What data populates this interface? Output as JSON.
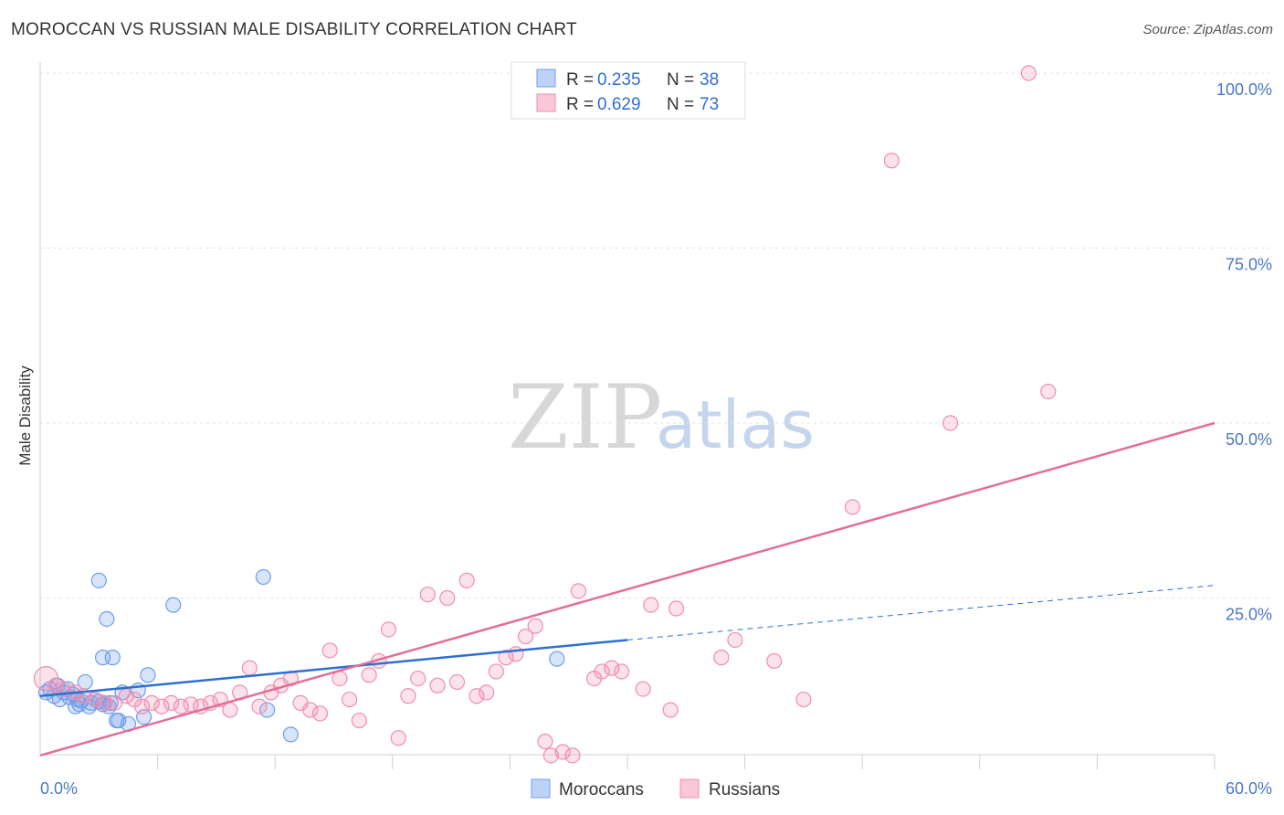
{
  "title": "MOROCCAN VS RUSSIAN MALE DISABILITY CORRELATION CHART",
  "source": "Source: ZipAtlas.com",
  "watermark": {
    "zip": "ZIP",
    "atlas": "atlas"
  },
  "colors": {
    "moroccans": "#6f9fe8",
    "russians": "#f08db0",
    "moroccans_line": "#2e6fd1",
    "russians_line": "#e46d9a",
    "axis_text": "#4a78c6"
  },
  "legend": {
    "rows": [
      {
        "r_label": "R = ",
        "r_value": "0.235",
        "n_label": "N = ",
        "n_value": "38"
      },
      {
        "r_label": "R = ",
        "r_value": "0.629",
        "n_label": "N = ",
        "n_value": "73"
      }
    ]
  },
  "chart_data": {
    "type": "scatter",
    "xlabel": "",
    "ylabel": "Male Disability",
    "xlim": [
      0,
      60
    ],
    "ylim": [
      0,
      100
    ],
    "x_tick_labels": [
      "0.0%",
      "60.0%"
    ],
    "y_tick_labels": [
      "100.0%",
      "75.0%",
      "50.0%",
      "25.0%"
    ],
    "y_ticks": [
      100,
      75,
      50,
      25
    ],
    "grid": true,
    "legend_position": "top-center",
    "series": [
      {
        "name": "Moroccans",
        "r": 0.235,
        "n": 38,
        "trend": {
          "x0": 0,
          "y0": 11.0,
          "x1": 30,
          "y1": 19.0,
          "dashed_to_x": 60,
          "dashed_to_y": 26.8
        },
        "points": [
          [
            0.3,
            11.5
          ],
          [
            0.5,
            12.0
          ],
          [
            0.7,
            11.0
          ],
          [
            0.9,
            12.5
          ],
          [
            1.0,
            10.5
          ],
          [
            1.2,
            11.5
          ],
          [
            1.4,
            12.0
          ],
          [
            1.5,
            10.8
          ],
          [
            1.7,
            11.2
          ],
          [
            1.8,
            9.5
          ],
          [
            2.0,
            9.8
          ],
          [
            2.1,
            10.3
          ],
          [
            2.3,
            13.0
          ],
          [
            2.5,
            9.5
          ],
          [
            2.6,
            10.0
          ],
          [
            2.8,
            10.5
          ],
          [
            3.0,
            10.2
          ],
          [
            3.2,
            9.8
          ],
          [
            3.3,
            10.0
          ],
          [
            3.5,
            9.5
          ],
          [
            3.6,
            10.0
          ],
          [
            3.0,
            27.5
          ],
          [
            3.2,
            16.5
          ],
          [
            3.4,
            22.0
          ],
          [
            3.7,
            16.5
          ],
          [
            4.0,
            7.5
          ],
          [
            4.2,
            11.5
          ],
          [
            4.5,
            7.0
          ],
          [
            5.0,
            11.8
          ],
          [
            5.5,
            14.0
          ],
          [
            5.3,
            8.0
          ],
          [
            6.8,
            24.0
          ],
          [
            11.4,
            28.0
          ],
          [
            11.6,
            9.0
          ],
          [
            12.8,
            5.5
          ],
          [
            26.4,
            16.3
          ],
          [
            3.9,
            7.5
          ],
          [
            1.9,
            10.5
          ]
        ]
      },
      {
        "name": "Russians",
        "r": 0.629,
        "n": 73,
        "trend": {
          "x0": 0,
          "y0": 2.5,
          "x1": 60,
          "y1": 50.0
        },
        "points": [
          [
            0.3,
            13.5
          ],
          [
            0.8,
            12.5
          ],
          [
            1.2,
            12.0
          ],
          [
            1.8,
            11.5
          ],
          [
            2.2,
            11.0
          ],
          [
            2.8,
            10.5
          ],
          [
            3.3,
            10.0
          ],
          [
            3.8,
            10.0
          ],
          [
            4.4,
            11.0
          ],
          [
            4.8,
            10.5
          ],
          [
            5.2,
            9.5
          ],
          [
            5.7,
            10.0
          ],
          [
            6.2,
            9.5
          ],
          [
            6.7,
            10.0
          ],
          [
            7.2,
            9.5
          ],
          [
            7.7,
            9.8
          ],
          [
            8.2,
            9.5
          ],
          [
            8.7,
            10.0
          ],
          [
            9.2,
            10.5
          ],
          [
            9.7,
            9.0
          ],
          [
            10.2,
            11.5
          ],
          [
            10.7,
            15.0
          ],
          [
            11.2,
            9.5
          ],
          [
            11.8,
            11.5
          ],
          [
            12.3,
            12.5
          ],
          [
            12.8,
            13.5
          ],
          [
            13.3,
            10.0
          ],
          [
            13.8,
            9.0
          ],
          [
            14.3,
            8.5
          ],
          [
            14.8,
            17.5
          ],
          [
            15.3,
            13.5
          ],
          [
            15.8,
            10.5
          ],
          [
            16.3,
            7.5
          ],
          [
            16.8,
            14.0
          ],
          [
            17.3,
            16.0
          ],
          [
            17.8,
            20.5
          ],
          [
            18.3,
            5.0
          ],
          [
            18.8,
            11.0
          ],
          [
            19.3,
            13.5
          ],
          [
            19.8,
            25.5
          ],
          [
            20.3,
            12.5
          ],
          [
            20.8,
            25.0
          ],
          [
            21.3,
            13.0
          ],
          [
            21.8,
            27.5
          ],
          [
            22.3,
            11.0
          ],
          [
            22.8,
            11.5
          ],
          [
            23.3,
            14.5
          ],
          [
            23.8,
            16.5
          ],
          [
            24.3,
            17.0
          ],
          [
            24.8,
            19.5
          ],
          [
            25.3,
            21.0
          ],
          [
            25.8,
            4.5
          ],
          [
            26.1,
            2.5
          ],
          [
            26.7,
            3.0
          ],
          [
            27.2,
            2.5
          ],
          [
            27.5,
            26.0
          ],
          [
            28.3,
            13.5
          ],
          [
            28.7,
            14.5
          ],
          [
            29.2,
            15.0
          ],
          [
            29.7,
            14.5
          ],
          [
            30.8,
            12.0
          ],
          [
            31.2,
            24.0
          ],
          [
            32.2,
            9.0
          ],
          [
            32.5,
            23.5
          ],
          [
            34.8,
            16.5
          ],
          [
            35.5,
            19.0
          ],
          [
            37.5,
            16.0
          ],
          [
            39.0,
            10.5
          ],
          [
            41.5,
            38.0
          ],
          [
            43.5,
            87.5
          ],
          [
            46.5,
            50.0
          ],
          [
            50.5,
            100.0
          ],
          [
            51.5,
            54.5
          ]
        ]
      }
    ]
  },
  "bottom_legend": {
    "items": [
      "Moroccans",
      "Russians"
    ]
  }
}
